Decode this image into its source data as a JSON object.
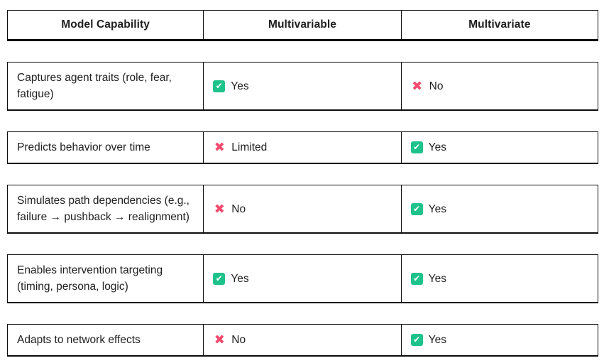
{
  "colors": {
    "check": "#1ec28b",
    "cross": "#f14a6e",
    "border": "#0d0d0d",
    "text": "#202020"
  },
  "table": {
    "headers": [
      "Model Capability",
      "Multivariable",
      "Multivariate"
    ],
    "rows": [
      {
        "capability": "Captures agent traits (role, fear, fatigue)",
        "cells": [
          {
            "icon": "check",
            "label": "Yes"
          },
          {
            "icon": "cross",
            "label": "No"
          }
        ]
      },
      {
        "capability": "Predicts behavior over time",
        "cells": [
          {
            "icon": "cross",
            "label": "Limited"
          },
          {
            "icon": "check",
            "label": "Yes"
          }
        ]
      },
      {
        "capability": "Simulates path dependencies (e.g., failure → pushback → realignment)",
        "cells": [
          {
            "icon": "cross",
            "label": "No"
          },
          {
            "icon": "check",
            "label": "Yes"
          }
        ]
      },
      {
        "capability": "Enables intervention targeting (timing, persona, logic)",
        "cells": [
          {
            "icon": "check",
            "label": "Yes"
          },
          {
            "icon": "check",
            "label": "Yes"
          }
        ]
      },
      {
        "capability": "Adapts to network effects",
        "cells": [
          {
            "icon": "cross",
            "label": "No"
          },
          {
            "icon": "check",
            "label": "Yes"
          }
        ]
      }
    ]
  }
}
